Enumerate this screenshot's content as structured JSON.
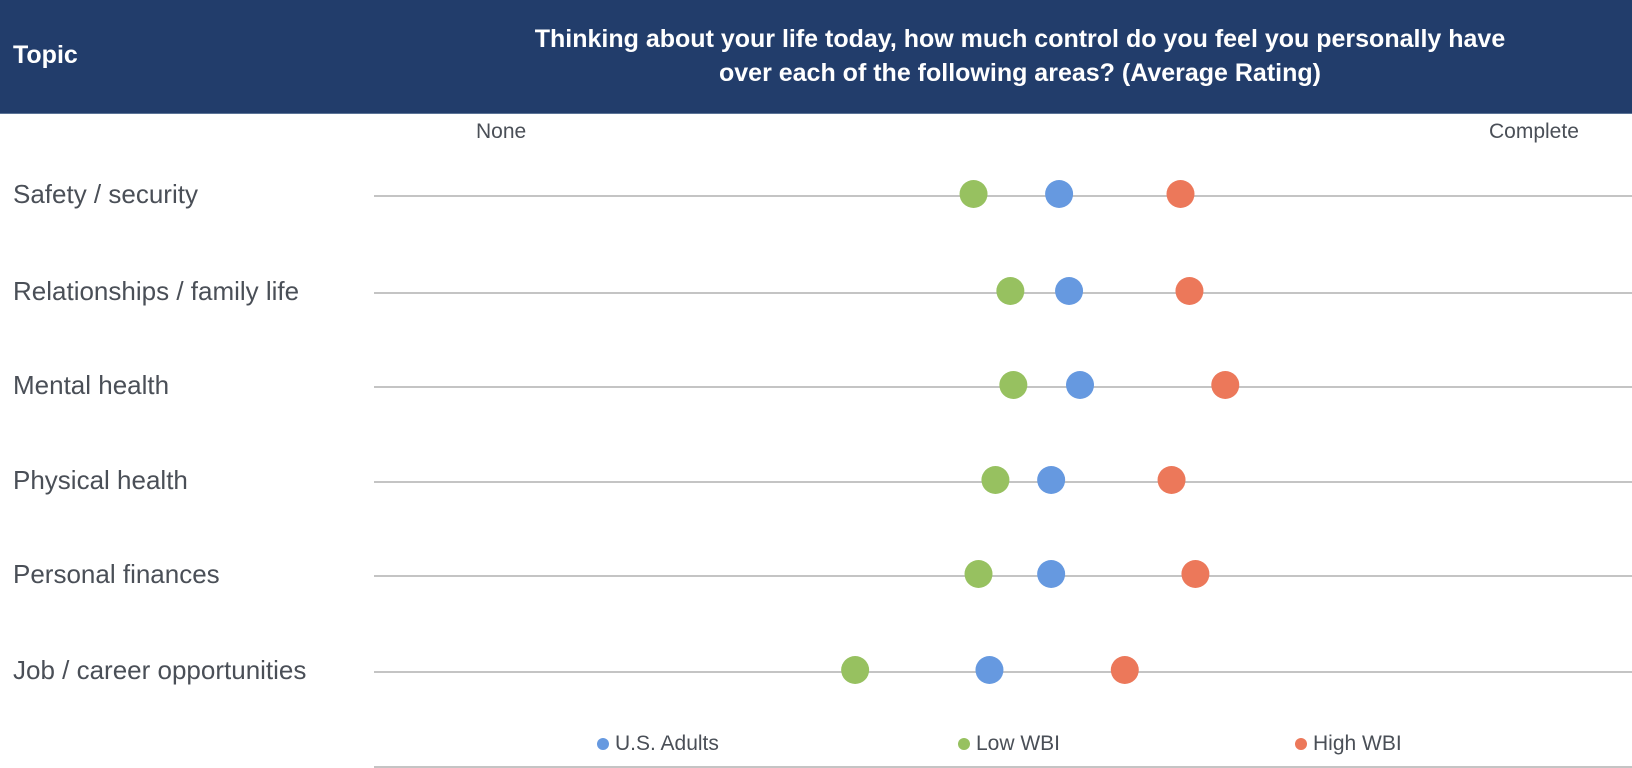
{
  "header": {
    "topic_label": "Topic",
    "question": "Thinking about your life today, how much control do you feel you personally have over each of the following areas? (Average Rating)"
  },
  "colors": {
    "header_bg": "#223d6b",
    "us_adults": "#6699e0",
    "low_wbi": "#97c160",
    "high_wbi": "#ec785a",
    "line": "#b0b0b0"
  },
  "chart_data": {
    "type": "scatter",
    "title": "Thinking about your life today, how much control do you feel you personally have over each of the following areas? (Average Rating)",
    "xlabel": "",
    "ylabel": "Topic",
    "x_scale_labels": {
      "min": "None",
      "max": "Complete"
    },
    "xlim": [
      0,
      100
    ],
    "categories": [
      "Safety / security",
      "Relationships / family life",
      "Mental health",
      "Physical health",
      "Personal finances",
      "Job / career opportunities"
    ],
    "series": [
      {
        "name": "U.S. Adults",
        "color": "#6699e0",
        "values": [
          57.8,
          58.8,
          59.9,
          57.0,
          57.0,
          50.8
        ]
      },
      {
        "name": "Low WBI",
        "color": "#97c160",
        "values": [
          49.2,
          52.9,
          53.2,
          51.4,
          49.7,
          37.3
        ]
      },
      {
        "name": "High WBI",
        "color": "#ec785a",
        "values": [
          70.0,
          70.9,
          74.5,
          69.1,
          71.5,
          64.4
        ]
      }
    ],
    "legend": {
      "position": "bottom",
      "items": [
        "U.S. Adults",
        "Low WBI",
        "High WBI"
      ]
    },
    "grid": false,
    "note": "Values estimated relative to the 'None' (0) and 'Complete' (100) scale anchors; no numeric axis is shown."
  }
}
